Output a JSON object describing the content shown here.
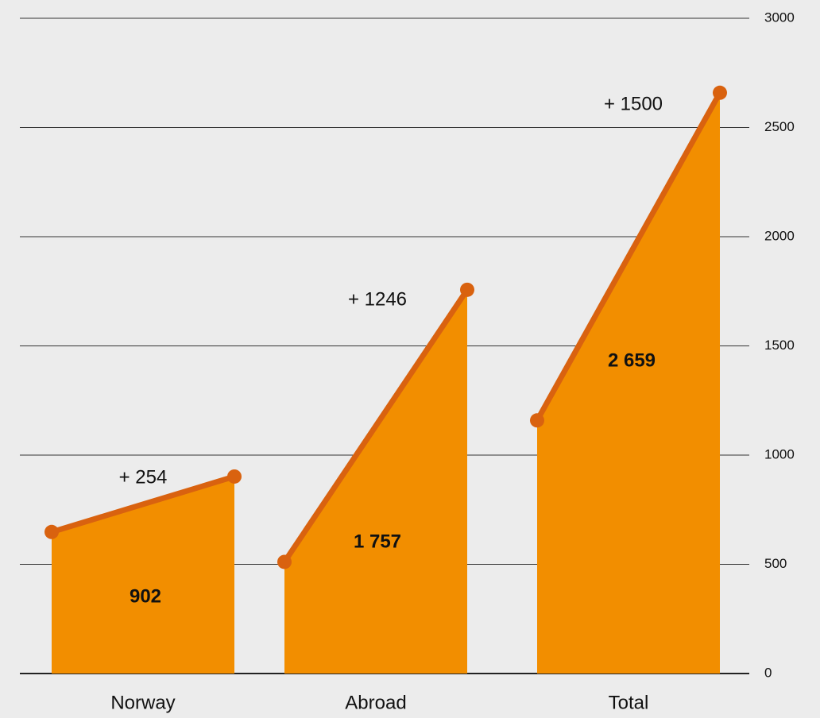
{
  "chart_data": {
    "type": "slope",
    "categories": [
      "Norway",
      "Abroad",
      "Total"
    ],
    "start_values": [
      648,
      511,
      1159
    ],
    "values": [
      902,
      1757,
      2659
    ],
    "value_labels": [
      "902",
      "1 757",
      "2 659"
    ],
    "change_labels": [
      "+ 254",
      "+ 1246",
      "+ 1500"
    ],
    "color": "#f28e00",
    "line_color": "#d9620f",
    "ylim": [
      0,
      3000
    ],
    "yticks": [
      0,
      500,
      1000,
      1500,
      2000,
      2500,
      3000
    ],
    "grid": true
  }
}
